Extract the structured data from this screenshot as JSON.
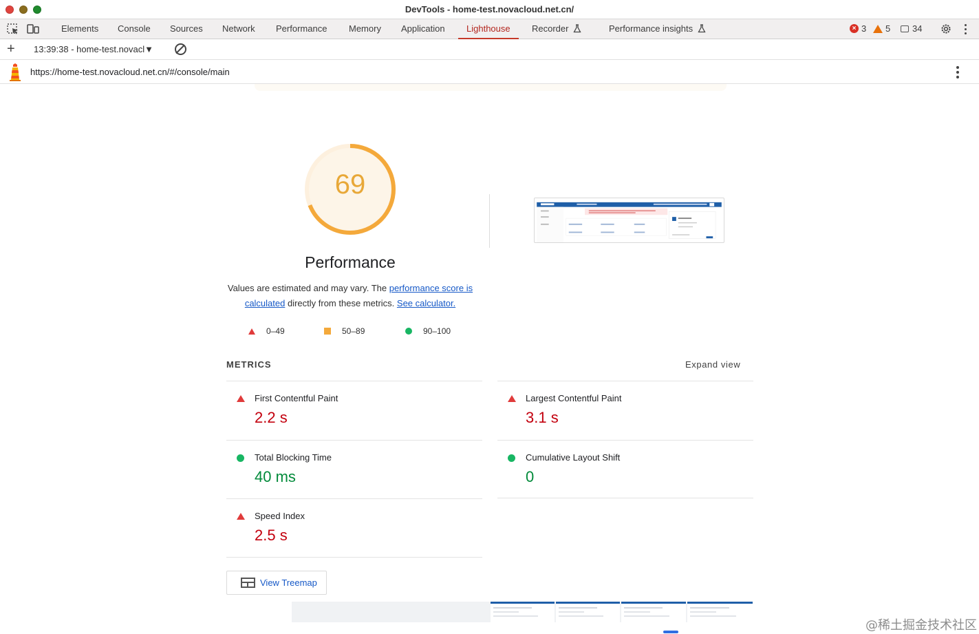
{
  "window": {
    "title": "DevTools - home-test.novacloud.net.cn/"
  },
  "tabs": [
    {
      "label": "Elements"
    },
    {
      "label": "Console"
    },
    {
      "label": "Sources"
    },
    {
      "label": "Network"
    },
    {
      "label": "Performance"
    },
    {
      "label": "Memory"
    },
    {
      "label": "Application"
    },
    {
      "label": "Lighthouse",
      "active": true
    },
    {
      "label": "Recorder"
    },
    {
      "label": "Performance insights"
    }
  ],
  "status_counts": {
    "errors": "3",
    "warnings": "5",
    "messages": "34"
  },
  "toolbar": {
    "report_select": "13:39:38 - home-test.novacl"
  },
  "urlbar": {
    "url": "https://home-test.novacloud.net.cn/#/console/main"
  },
  "category": {
    "score": "69",
    "score_fraction": 0.69,
    "title": "Performance",
    "desc_1": "Values are estimated and may vary. The ",
    "desc_link_1": "performance score is calculated",
    "desc_2": " directly from these metrics. ",
    "desc_link_2": "See calculator."
  },
  "legend": {
    "fail": "0–49",
    "average": "50–89",
    "pass": "90–100"
  },
  "metrics_header": "METRICS",
  "expand_view": "Expand view",
  "metrics": [
    {
      "label": "First Contentful Paint",
      "value": "2.2 s",
      "rating": "fail"
    },
    {
      "label": "Largest Contentful Paint",
      "value": "3.1 s",
      "rating": "fail"
    },
    {
      "label": "Total Blocking Time",
      "value": "40 ms",
      "rating": "pass"
    },
    {
      "label": "Cumulative Layout Shift",
      "value": "0",
      "rating": "pass"
    },
    {
      "label": "Speed Index",
      "value": "2.5 s",
      "rating": "fail"
    }
  ],
  "treemap_button": "View Treemap",
  "watermark": "@稀土掘金技术社区",
  "colors": {
    "fail": "#e03b3b",
    "average": "#f4a93b",
    "pass": "#18b663",
    "gauge": "#f4a93b",
    "active_tab": "#c53929",
    "link": "#1558c7"
  },
  "icons": [
    "select-element-icon",
    "device-toggle-icon",
    "experiment-flask-icon",
    "error-icon",
    "warning-icon",
    "message-icon",
    "settings-gear-icon",
    "more-vertical-icon",
    "plus-icon",
    "clear-icon",
    "lighthouse-logo-icon",
    "treemap-icon"
  ]
}
